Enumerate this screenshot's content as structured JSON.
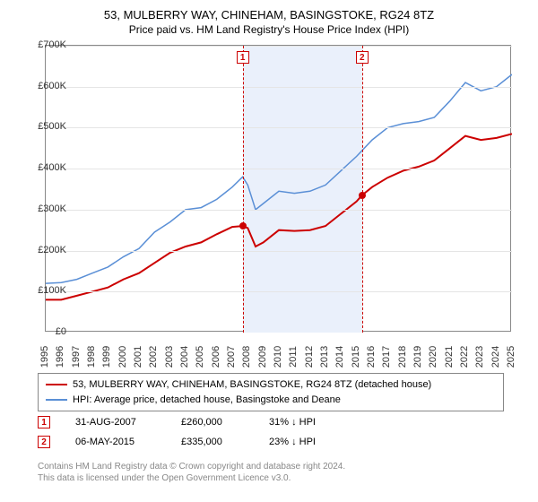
{
  "title_line1": "53, MULBERRY WAY, CHINEHAM, BASINGSTOKE, RG24 8TZ",
  "title_line2": "Price paid vs. HM Land Registry's House Price Index (HPI)",
  "chart": {
    "type": "line",
    "y_axis": {
      "min": 0,
      "max": 700000,
      "step": 100000,
      "labels": [
        "£0",
        "£100K",
        "£200K",
        "£300K",
        "£400K",
        "£500K",
        "£600K",
        "£700K"
      ]
    },
    "x_axis": {
      "min": 1995,
      "max": 2025,
      "step": 1,
      "labels": [
        "1995",
        "1996",
        "1997",
        "1998",
        "1999",
        "2000",
        "2001",
        "2002",
        "2003",
        "2004",
        "2005",
        "2006",
        "2007",
        "2008",
        "2009",
        "2010",
        "2011",
        "2012",
        "2013",
        "2014",
        "2015",
        "2016",
        "2017",
        "2018",
        "2019",
        "2020",
        "2021",
        "2022",
        "2023",
        "2024",
        "2025"
      ]
    },
    "grid_color": "#e5e5e5",
    "axis_color": "#888888",
    "background_color": "#ffffff",
    "shade_band": {
      "from_year": 2007.67,
      "to_year": 2015.35,
      "color": "#eaf0fb"
    },
    "series": [
      {
        "name": "property",
        "label": "53, MULBERRY WAY, CHINEHAM, BASINGSTOKE, RG24 8TZ (detached house)",
        "color": "#cc0000",
        "width": 2,
        "points": [
          [
            1995,
            80000
          ],
          [
            1996,
            80000
          ],
          [
            1997,
            90000
          ],
          [
            1998,
            100000
          ],
          [
            1999,
            110000
          ],
          [
            2000,
            130000
          ],
          [
            2001,
            145000
          ],
          [
            2002,
            170000
          ],
          [
            2003,
            195000
          ],
          [
            2004,
            210000
          ],
          [
            2005,
            220000
          ],
          [
            2006,
            240000
          ],
          [
            2007,
            258000
          ],
          [
            2007.67,
            260000
          ],
          [
            2008,
            255000
          ],
          [
            2008.5,
            210000
          ],
          [
            2009,
            220000
          ],
          [
            2010,
            250000
          ],
          [
            2011,
            248000
          ],
          [
            2012,
            250000
          ],
          [
            2013,
            260000
          ],
          [
            2014,
            290000
          ],
          [
            2015,
            320000
          ],
          [
            2015.35,
            335000
          ],
          [
            2016,
            355000
          ],
          [
            2017,
            378000
          ],
          [
            2018,
            395000
          ],
          [
            2019,
            405000
          ],
          [
            2020,
            420000
          ],
          [
            2021,
            450000
          ],
          [
            2022,
            480000
          ],
          [
            2023,
            470000
          ],
          [
            2024,
            475000
          ],
          [
            2025,
            485000
          ]
        ]
      },
      {
        "name": "hpi",
        "label": "HPI: Average price, detached house, Basingstoke and Deane",
        "color": "#5a8fd6",
        "width": 1.5,
        "points": [
          [
            1995,
            120000
          ],
          [
            1996,
            122000
          ],
          [
            1997,
            130000
          ],
          [
            1998,
            145000
          ],
          [
            1999,
            160000
          ],
          [
            2000,
            185000
          ],
          [
            2001,
            205000
          ],
          [
            2002,
            245000
          ],
          [
            2003,
            270000
          ],
          [
            2004,
            300000
          ],
          [
            2005,
            305000
          ],
          [
            2006,
            325000
          ],
          [
            2007,
            355000
          ],
          [
            2007.67,
            380000
          ],
          [
            2008,
            360000
          ],
          [
            2008.5,
            300000
          ],
          [
            2009,
            315000
          ],
          [
            2010,
            345000
          ],
          [
            2011,
            340000
          ],
          [
            2012,
            345000
          ],
          [
            2013,
            360000
          ],
          [
            2014,
            395000
          ],
          [
            2015,
            430000
          ],
          [
            2016,
            470000
          ],
          [
            2017,
            500000
          ],
          [
            2018,
            510000
          ],
          [
            2019,
            515000
          ],
          [
            2020,
            525000
          ],
          [
            2021,
            565000
          ],
          [
            2022,
            610000
          ],
          [
            2023,
            590000
          ],
          [
            2024,
            600000
          ],
          [
            2025,
            630000
          ]
        ]
      }
    ],
    "events": [
      {
        "num": "1",
        "year": 2007.67,
        "price": 260000,
        "color": "#cc0000"
      },
      {
        "num": "2",
        "year": 2015.35,
        "price": 335000,
        "color": "#cc0000"
      }
    ]
  },
  "legend": {
    "rows": [
      {
        "color": "#cc0000",
        "label": "53, MULBERRY WAY, CHINEHAM, BASINGSTOKE, RG24 8TZ (detached house)"
      },
      {
        "color": "#5a8fd6",
        "label": "HPI: Average price, detached house, Basingstoke and Deane"
      }
    ]
  },
  "sales": [
    {
      "num": "1",
      "date": "31-AUG-2007",
      "price": "£260,000",
      "pct": "31%",
      "arrow": "↓",
      "vs": "HPI",
      "color": "#cc0000"
    },
    {
      "num": "2",
      "date": "06-MAY-2015",
      "price": "£335,000",
      "pct": "23%",
      "arrow": "↓",
      "vs": "HPI",
      "color": "#cc0000"
    }
  ],
  "footer_line1": "Contains HM Land Registry data © Crown copyright and database right 2024.",
  "footer_line2": "This data is licensed under the Open Government Licence v3.0."
}
